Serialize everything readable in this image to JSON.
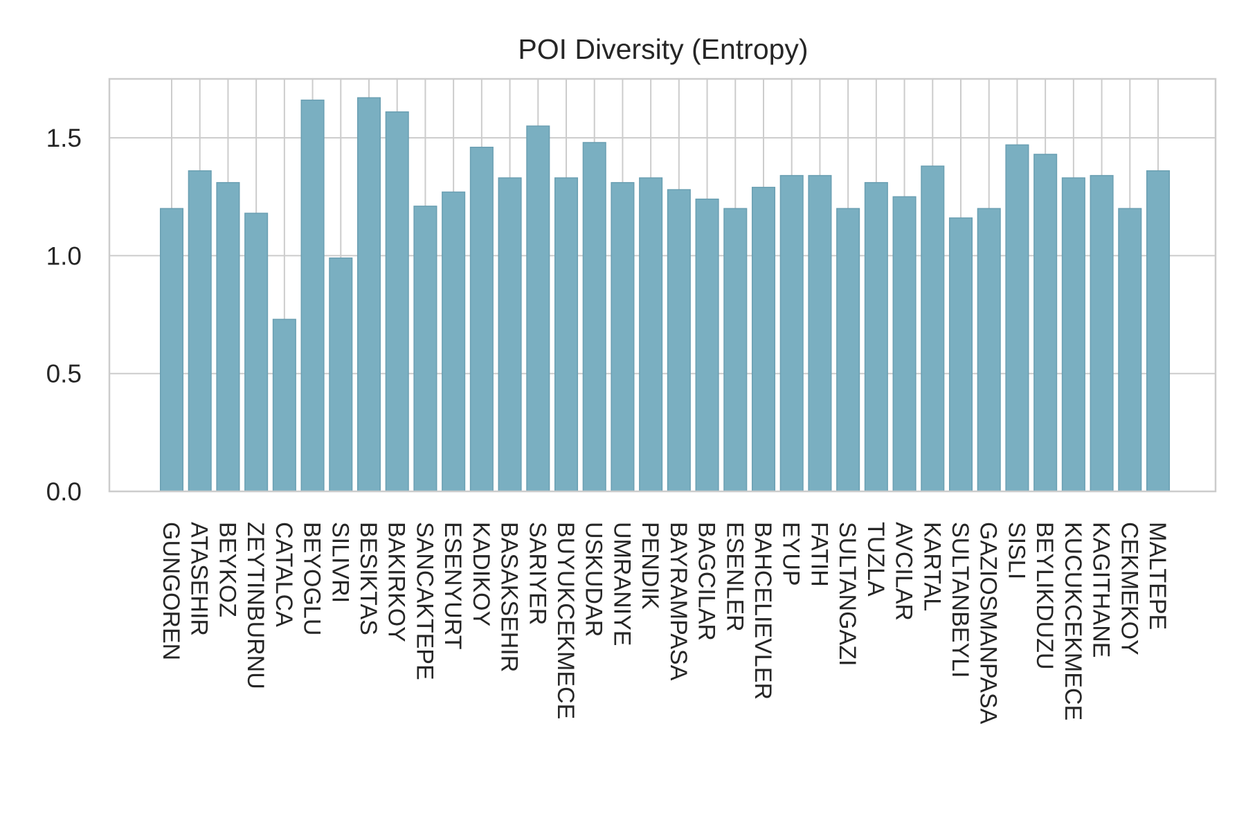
{
  "chart_data": {
    "type": "bar",
    "title": "POI Diversity (Entropy)",
    "xlabel": "",
    "ylabel": "",
    "ylim": [
      0,
      1.75
    ],
    "yticks": [
      0.0,
      0.5,
      1.0,
      1.5
    ],
    "ytick_labels": [
      "0.0",
      "0.5",
      "1.0",
      "1.5"
    ],
    "grid": true,
    "bar_color": "#7AAFC1",
    "bar_edge_color": "#6A9FB2",
    "grid_color": "#CCCCCC",
    "categories": [
      "GUNGOREN",
      "ATASEHIR",
      "BEYKOZ",
      "ZEYTINBURNU",
      "CATALCA",
      "BEYOGLU",
      "SILIVRI",
      "BESIKTAS",
      "BAKIRKOY",
      "SANCAKTEPE",
      "ESENYURT",
      "KADIKOY",
      "BASAKSEHIR",
      "SARIYER",
      "BUYUKCEKMECE",
      "USKUDAR",
      "UMRANIYE",
      "PENDIK",
      "BAYRAMPASA",
      "BAGCILAR",
      "ESENLER",
      "BAHCELIEVLER",
      "EYUP",
      "FATIH",
      "SULTANGAZI",
      "TUZLA",
      "AVCILAR",
      "KARTAL",
      "SULTANBEYLI",
      "GAZIOSMANPASA",
      "SISLI",
      "BEYLIKDUZU",
      "KUCUKCEKMECE",
      "KAGITHANE",
      "CEKMEKOY",
      "MALTEPE"
    ],
    "values": [
      1.2,
      1.36,
      1.31,
      1.18,
      0.73,
      1.66,
      0.99,
      1.67,
      1.61,
      1.21,
      1.27,
      1.46,
      1.33,
      1.55,
      1.33,
      1.48,
      1.31,
      1.33,
      1.28,
      1.24,
      1.2,
      1.29,
      1.34,
      1.34,
      1.2,
      1.31,
      1.25,
      1.38,
      1.16,
      1.2,
      1.47,
      1.43,
      1.33,
      1.34,
      1.2,
      1.36
    ]
  }
}
